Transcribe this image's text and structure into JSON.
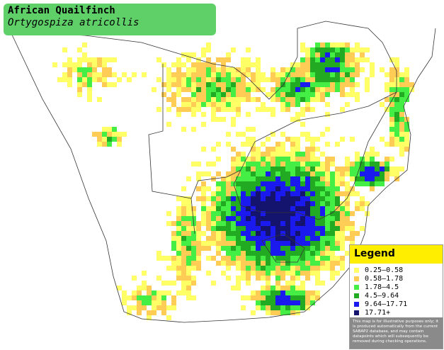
{
  "title": "African Quailfinch",
  "subtitle": "Ortygospiza atricollis",
  "legend": {
    "title": "Legend",
    "items": [
      {
        "label": "0.25–0.58",
        "color": "#ffff66"
      },
      {
        "label": "0.58–1.78",
        "color": "#ffcc55"
      },
      {
        "label": "1.78–4.5",
        "color": "#44ee44"
      },
      {
        "label": "4.5–9.64",
        "color": "#22aa22"
      },
      {
        "label": "9.64–17.71",
        "color": "#1a1aee"
      },
      {
        "label": "17.71+",
        "color": "#14146e"
      }
    ],
    "disclaimer": "This map is for illustrative purposes only; it is produced automatically from the current SABAP2 database, and may contain datapoints which will subsequently be removed during checking operations."
  }
}
